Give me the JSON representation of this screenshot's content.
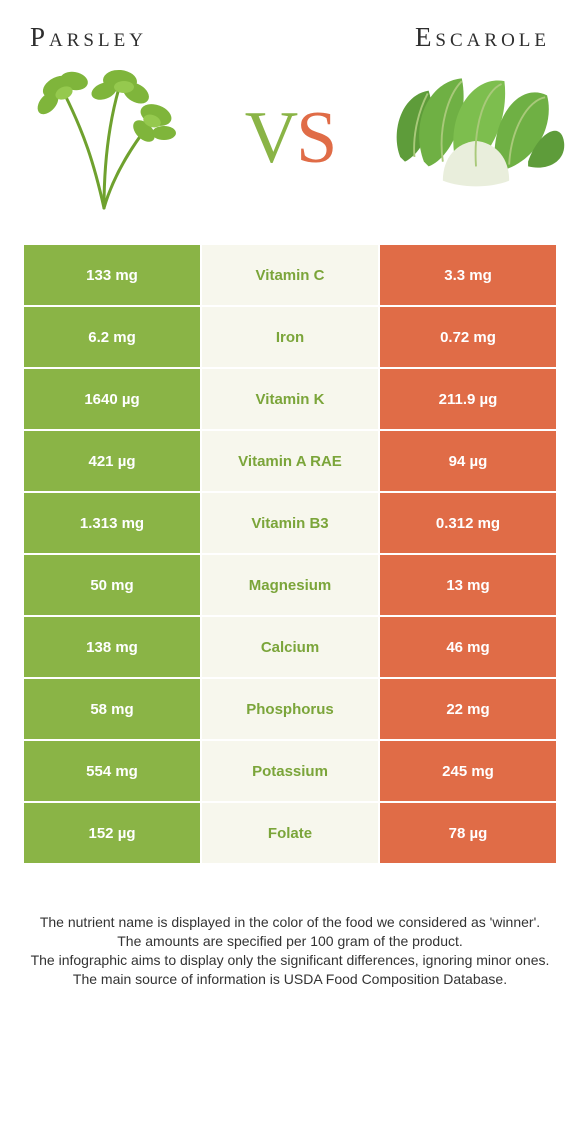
{
  "header": {
    "left": "Parsley",
    "right": "Escarole"
  },
  "vs": {
    "v": "V",
    "s": "S"
  },
  "colors": {
    "parsley": "#8AB446",
    "escarole": "#E06C47",
    "mid_bg": "#F7F7ED",
    "mid_text_parsley": "#7BA53A",
    "mid_text_escarole": "#E06C47"
  },
  "rows": [
    {
      "label": "Vitamin C",
      "left": "133 mg",
      "right": "3.3 mg",
      "winner": "parsley"
    },
    {
      "label": "Iron",
      "left": "6.2 mg",
      "right": "0.72 mg",
      "winner": "parsley"
    },
    {
      "label": "Vitamin K",
      "left": "1640 µg",
      "right": "211.9 µg",
      "winner": "parsley"
    },
    {
      "label": "Vitamin A RAE",
      "left": "421 µg",
      "right": "94 µg",
      "winner": "parsley"
    },
    {
      "label": "Vitamin B3",
      "left": "1.313 mg",
      "right": "0.312 mg",
      "winner": "parsley"
    },
    {
      "label": "Magnesium",
      "left": "50 mg",
      "right": "13 mg",
      "winner": "parsley"
    },
    {
      "label": "Calcium",
      "left": "138 mg",
      "right": "46 mg",
      "winner": "parsley"
    },
    {
      "label": "Phosphorus",
      "left": "58 mg",
      "right": "22 mg",
      "winner": "parsley"
    },
    {
      "label": "Potassium",
      "left": "554 mg",
      "right": "245 mg",
      "winner": "parsley"
    },
    {
      "label": "Folate",
      "left": "152 µg",
      "right": "78 µg",
      "winner": "parsley"
    }
  ],
  "footnotes": [
    "The nutrient name is displayed in the color of the food we considered as 'winner'.",
    "The amounts are specified per 100 gram of the product.",
    "The infographic aims to display only the significant differences, ignoring minor ones.",
    "The main source of information is USDA Food Composition Database."
  ]
}
